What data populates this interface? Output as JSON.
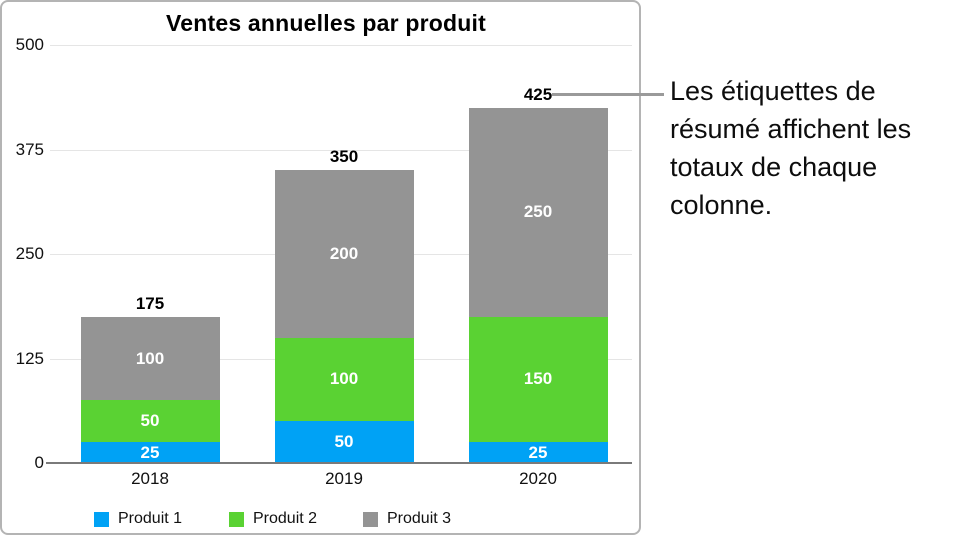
{
  "chart_data": {
    "type": "bar",
    "stacked": true,
    "title": "Ventes annuelles par produit",
    "categories": [
      "2018",
      "2019",
      "2020"
    ],
    "series": [
      {
        "name": "Produit 1",
        "color": "#00a2f5",
        "values": [
          25,
          50,
          25
        ]
      },
      {
        "name": "Produit 2",
        "color": "#5ad233",
        "values": [
          50,
          100,
          150
        ]
      },
      {
        "name": "Produit 3",
        "color": "#949494",
        "values": [
          100,
          200,
          250
        ]
      }
    ],
    "totals": [
      175,
      350,
      425
    ],
    "xlabel": "",
    "ylabel": "",
    "y_ticks": [
      0,
      125,
      250,
      375,
      500
    ],
    "ylim": [
      0,
      500
    ],
    "grid": true,
    "legend_position": "bottom",
    "summary_labels_visible": true
  },
  "callout": {
    "text": "Les étiquettes de résumé affichent les totaux de chaque colonne.",
    "points_to_total": "425"
  },
  "colors": {
    "frame_border": "#b4b4b4",
    "gridline": "#e5e5e5",
    "axis_line": "#7a7a7a",
    "callout_line": "#9a9a9a",
    "segment_label_text": "#ffffff",
    "text": "#000000"
  }
}
